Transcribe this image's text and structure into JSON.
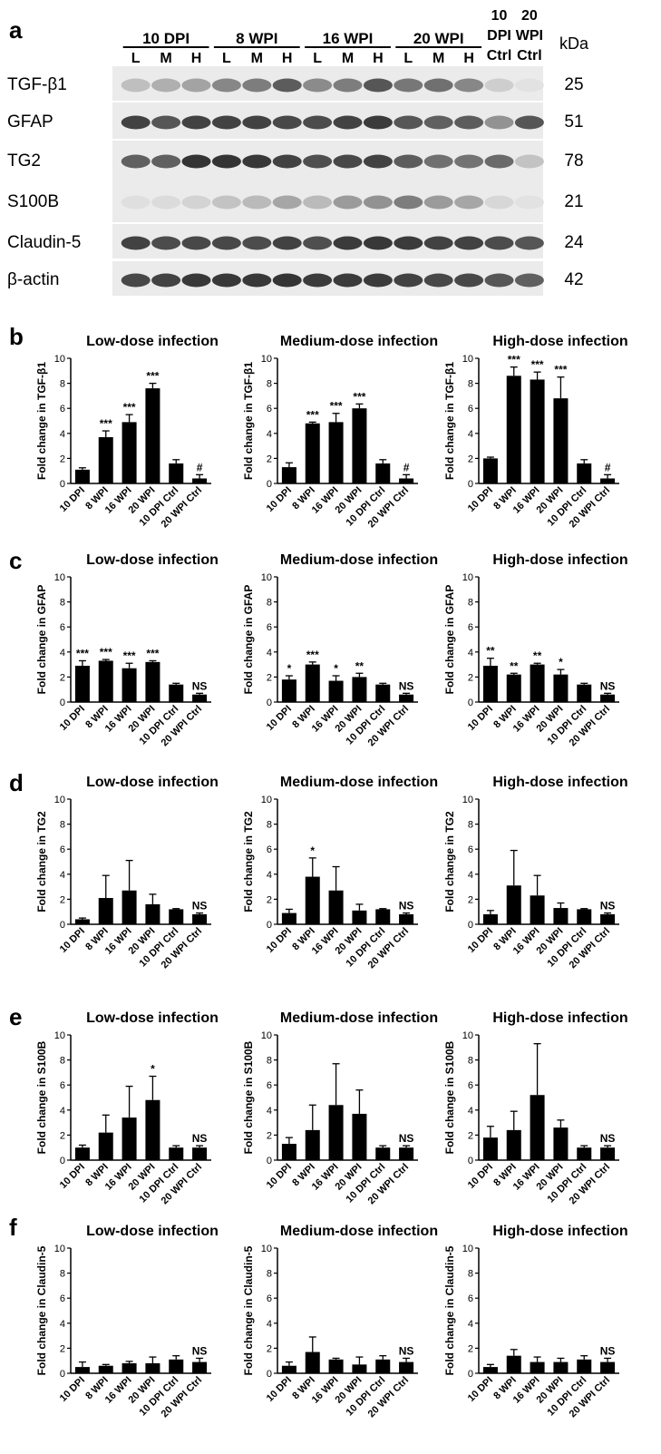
{
  "panel_a": {
    "label": "a",
    "groups": [
      "10 DPI",
      "8 WPI",
      "16 WPI",
      "20 WPI"
    ],
    "dose_labels": [
      "L",
      "M",
      "H"
    ],
    "ctrl_columns": [
      [
        "10",
        "DPI",
        "Ctrl"
      ],
      [
        "20",
        "WPI",
        "Ctrl"
      ]
    ],
    "kda_header": "kDa",
    "blots": [
      {
        "protein": "TGF-β1",
        "kda": "25",
        "intensity": [
          0.22,
          0.3,
          0.36,
          0.5,
          0.55,
          0.72,
          0.48,
          0.55,
          0.75,
          0.58,
          0.62,
          0.5,
          0.15,
          0.05
        ]
      },
      {
        "protein": "GFAP",
        "kda": "51",
        "intensity": [
          0.85,
          0.75,
          0.85,
          0.85,
          0.85,
          0.82,
          0.8,
          0.85,
          0.88,
          0.75,
          0.7,
          0.72,
          0.45,
          0.75
        ]
      },
      {
        "protein": "TG2",
        "kda": "78",
        "intensity": [
          0.7,
          0.7,
          0.92,
          0.92,
          0.9,
          0.85,
          0.78,
          0.82,
          0.85,
          0.72,
          0.62,
          0.6,
          0.65,
          0.2
        ]
      },
      {
        "protein": "S100B",
        "kda": "21",
        "intensity": [
          0.06,
          0.08,
          0.12,
          0.2,
          0.25,
          0.35,
          0.25,
          0.4,
          0.45,
          0.55,
          0.4,
          0.35,
          0.1,
          0.05
        ]
      },
      {
        "protein": "Claudin-5",
        "kda": "24",
        "intensity": [
          0.85,
          0.8,
          0.82,
          0.82,
          0.8,
          0.85,
          0.78,
          0.88,
          0.9,
          0.88,
          0.85,
          0.85,
          0.8,
          0.75
        ]
      },
      {
        "protein": "β-actin",
        "kda": "42",
        "intensity": [
          0.82,
          0.85,
          0.9,
          0.9,
          0.9,
          0.92,
          0.88,
          0.88,
          0.88,
          0.85,
          0.82,
          0.82,
          0.75,
          0.7
        ]
      }
    ]
  },
  "chart_data": [
    {
      "type": "bar",
      "panel": "b",
      "title": "Low-dose infection",
      "ylabel": "Fold change in TGF-β1",
      "categories": [
        "10 DPI",
        "8 WPI",
        "16 WPI",
        "20 WPI",
        "10 DPI Ctrl",
        "20 WPI Ctrl"
      ],
      "values": [
        1.1,
        3.7,
        4.9,
        7.6,
        1.6,
        0.4
      ],
      "errors": [
        0.15,
        0.5,
        0.6,
        0.4,
        0.3,
        0.3
      ],
      "annotations": [
        "",
        "***",
        "***",
        "***",
        "",
        "#"
      ],
      "ylim": [
        0,
        10
      ],
      "yticks": [
        0,
        2,
        4,
        6,
        8,
        10
      ]
    },
    {
      "type": "bar",
      "panel": "b",
      "title": "Medium-dose infection",
      "ylabel": "Fold change in TGF-β1",
      "categories": [
        "10 DPI",
        "8 WPI",
        "16 WPI",
        "20 WPI",
        "10 DPI Ctrl",
        "20 WPI Ctrl"
      ],
      "values": [
        1.3,
        4.8,
        4.9,
        6.0,
        1.6,
        0.4
      ],
      "errors": [
        0.35,
        0.1,
        0.7,
        0.35,
        0.3,
        0.3
      ],
      "annotations": [
        "",
        "***",
        "***",
        "***",
        "",
        "#"
      ],
      "ylim": [
        0,
        10
      ],
      "yticks": [
        0,
        2,
        4,
        6,
        8,
        10
      ]
    },
    {
      "type": "bar",
      "panel": "b",
      "title": "High-dose infection",
      "ylabel": "Fold change in TGF-β1",
      "categories": [
        "10 DPI",
        "8 WPI",
        "16 WPI",
        "20 WPI",
        "10 DPI Ctrl",
        "20 WPI Ctrl"
      ],
      "values": [
        2.0,
        8.6,
        8.3,
        6.8,
        1.6,
        0.4
      ],
      "errors": [
        0.1,
        0.7,
        0.6,
        1.7,
        0.3,
        0.3
      ],
      "annotations": [
        "",
        "***",
        "***",
        "***",
        "",
        "#"
      ],
      "ylim": [
        0,
        10
      ],
      "yticks": [
        0,
        2,
        4,
        6,
        8,
        10
      ]
    },
    {
      "type": "bar",
      "panel": "c",
      "title": "Low-dose infection",
      "ylabel": "Fold change in GFAP",
      "categories": [
        "10 DPI",
        "8 WPI",
        "16 WPI",
        "20 WPI",
        "10 DPI Ctrl",
        "20 WPI Ctrl"
      ],
      "values": [
        2.9,
        3.3,
        2.7,
        3.2,
        1.4,
        0.6
      ],
      "errors": [
        0.4,
        0.1,
        0.4,
        0.1,
        0.1,
        0.1
      ],
      "annotations": [
        "***",
        "***",
        "***",
        "***",
        "",
        "NS"
      ],
      "ylim": [
        0,
        10
      ],
      "yticks": [
        0,
        2,
        4,
        6,
        8,
        10
      ]
    },
    {
      "type": "bar",
      "panel": "c",
      "title": "Medium-dose infection",
      "ylabel": "Fold change in GFAP",
      "categories": [
        "10 DPI",
        "8 WPI",
        "16 WPI",
        "20 WPI",
        "10 DPI Ctrl",
        "20 WPI Ctrl"
      ],
      "values": [
        1.8,
        3.0,
        1.7,
        2.0,
        1.4,
        0.6
      ],
      "errors": [
        0.3,
        0.2,
        0.4,
        0.3,
        0.1,
        0.1
      ],
      "annotations": [
        "*",
        "***",
        "*",
        "**",
        "",
        "NS"
      ],
      "ylim": [
        0,
        10
      ],
      "yticks": [
        0,
        2,
        4,
        6,
        8,
        10
      ]
    },
    {
      "type": "bar",
      "panel": "c",
      "title": "High-dose infection",
      "ylabel": "Fold change in GFAP",
      "categories": [
        "10 DPI",
        "8 WPI",
        "16 WPI",
        "20 WPI",
        "10 DPI Ctrl",
        "20 WPI Ctrl"
      ],
      "values": [
        2.9,
        2.2,
        3.0,
        2.2,
        1.4,
        0.6
      ],
      "errors": [
        0.6,
        0.1,
        0.1,
        0.4,
        0.1,
        0.1
      ],
      "annotations": [
        "**",
        "**",
        "**",
        "*",
        "",
        "NS"
      ],
      "ylim": [
        0,
        10
      ],
      "yticks": [
        0,
        2,
        4,
        6,
        8,
        10
      ]
    },
    {
      "type": "bar",
      "panel": "d",
      "title": "Low-dose infection",
      "ylabel": "Fold change in TG2",
      "categories": [
        "10 DPI",
        "8 WPI",
        "16 WPI",
        "20 WPI",
        "10 DPI Ctrl",
        "20 WPI Ctrl"
      ],
      "values": [
        0.4,
        2.1,
        2.7,
        1.6,
        1.2,
        0.8
      ],
      "errors": [
        0.1,
        1.8,
        2.4,
        0.8,
        0.05,
        0.1
      ],
      "annotations": [
        "",
        "",
        "",
        "",
        "",
        "NS"
      ],
      "ylim": [
        0,
        10
      ],
      "yticks": [
        0,
        2,
        4,
        6,
        8,
        10
      ]
    },
    {
      "type": "bar",
      "panel": "d",
      "title": "Medium-dose infection",
      "ylabel": "Fold change in TG2",
      "categories": [
        "10 DPI",
        "8 WPI",
        "16 WPI",
        "20 WPI",
        "10 DPI Ctrl",
        "20 WPI Ctrl"
      ],
      "values": [
        0.9,
        3.8,
        2.7,
        1.1,
        1.2,
        0.8
      ],
      "errors": [
        0.3,
        1.5,
        1.9,
        0.5,
        0.05,
        0.1
      ],
      "annotations": [
        "",
        "*",
        "",
        "",
        "",
        "NS"
      ],
      "ylim": [
        0,
        10
      ],
      "yticks": [
        0,
        2,
        4,
        6,
        8,
        10
      ]
    },
    {
      "type": "bar",
      "panel": "d",
      "title": "High-dose infection",
      "ylabel": "Fold change in TG2",
      "categories": [
        "10 DPI",
        "8 WPI",
        "16 WPI",
        "20 WPI",
        "10 DPI Ctrl",
        "20 WPI Ctrl"
      ],
      "values": [
        0.8,
        3.1,
        2.3,
        1.3,
        1.2,
        0.8
      ],
      "errors": [
        0.3,
        2.8,
        1.6,
        0.4,
        0.05,
        0.1
      ],
      "annotations": [
        "",
        "",
        "",
        "",
        "",
        "NS"
      ],
      "ylim": [
        0,
        10
      ],
      "yticks": [
        0,
        2,
        4,
        6,
        8,
        10
      ]
    },
    {
      "type": "bar",
      "panel": "e",
      "title": "Low-dose infection",
      "ylabel": "Fold change in S100B",
      "categories": [
        "10 DPI",
        "8 WPI",
        "16 WPI",
        "20 WPI",
        "10 DPI Ctrl",
        "20 WPI Ctrl"
      ],
      "values": [
        1.0,
        2.2,
        3.4,
        4.8,
        1.0,
        1.0
      ],
      "errors": [
        0.2,
        1.4,
        2.5,
        1.9,
        0.15,
        0.15
      ],
      "annotations": [
        "",
        "",
        "",
        "*",
        "",
        "NS"
      ],
      "ylim": [
        0,
        10
      ],
      "yticks": [
        0,
        2,
        4,
        6,
        8,
        10
      ]
    },
    {
      "type": "bar",
      "panel": "e",
      "title": "Medium-dose infection",
      "ylabel": "Fold change in S100B",
      "categories": [
        "10 DPI",
        "8 WPI",
        "16 WPI",
        "20 WPI",
        "10 DPI Ctrl",
        "20 WPI Ctrl"
      ],
      "values": [
        1.3,
        2.4,
        4.4,
        3.7,
        1.0,
        1.0
      ],
      "errors": [
        0.5,
        2.0,
        3.3,
        1.9,
        0.15,
        0.15
      ],
      "annotations": [
        "",
        "",
        "",
        "",
        "",
        "NS"
      ],
      "ylim": [
        0,
        10
      ],
      "yticks": [
        0,
        2,
        4,
        6,
        8,
        10
      ]
    },
    {
      "type": "bar",
      "panel": "e",
      "title": "High-dose infection",
      "ylabel": "Fold change in S100B",
      "categories": [
        "10 DPI",
        "8 WPI",
        "16 WPI",
        "20 WPI",
        "10 DPI Ctrl",
        "20 WPI Ctrl"
      ],
      "values": [
        1.8,
        2.4,
        5.2,
        2.6,
        1.0,
        1.0
      ],
      "errors": [
        0.9,
        1.5,
        4.1,
        0.6,
        0.15,
        0.15
      ],
      "annotations": [
        "",
        "",
        "",
        "",
        "",
        "NS"
      ],
      "ylim": [
        0,
        10
      ],
      "yticks": [
        0,
        2,
        4,
        6,
        8,
        10
      ]
    },
    {
      "type": "bar",
      "panel": "f",
      "title": "Low-dose infection",
      "ylabel": "Fold change in Claudin-5",
      "categories": [
        "10 DPI",
        "8 WPI",
        "16 WPI",
        "20 WPI",
        "10 DPI Ctrl",
        "20 WPI Ctrl"
      ],
      "values": [
        0.5,
        0.6,
        0.8,
        0.8,
        1.1,
        0.9
      ],
      "errors": [
        0.4,
        0.1,
        0.15,
        0.5,
        0.3,
        0.3
      ],
      "annotations": [
        "",
        "",
        "",
        "",
        "",
        "NS"
      ],
      "ylim": [
        0,
        10
      ],
      "yticks": [
        0,
        2,
        4,
        6,
        8,
        10
      ]
    },
    {
      "type": "bar",
      "panel": "f",
      "title": "Medium-dose infection",
      "ylabel": "Fold change in Claudin-5",
      "categories": [
        "10 DPI",
        "8 WPI",
        "16 WPI",
        "20 WPI",
        "10 DPI Ctrl",
        "20 WPI Ctrl"
      ],
      "values": [
        0.6,
        1.7,
        1.1,
        0.7,
        1.1,
        0.9
      ],
      "errors": [
        0.3,
        1.2,
        0.1,
        0.6,
        0.3,
        0.3
      ],
      "annotations": [
        "",
        "",
        "",
        "",
        "",
        "NS"
      ],
      "ylim": [
        0,
        10
      ],
      "yticks": [
        0,
        2,
        4,
        6,
        8,
        10
      ]
    },
    {
      "type": "bar",
      "panel": "f",
      "title": "High-dose infection",
      "ylabel": "Fold change in Claudin-5",
      "categories": [
        "10 DPI",
        "8 WPI",
        "16 WPI",
        "20 WPI",
        "10 DPI Ctrl",
        "20 WPI Ctrl"
      ],
      "values": [
        0.5,
        1.4,
        0.9,
        0.9,
        1.1,
        0.9
      ],
      "errors": [
        0.2,
        0.5,
        0.4,
        0.3,
        0.3,
        0.3
      ],
      "annotations": [
        "",
        "",
        "",
        "",
        "",
        "NS"
      ],
      "ylim": [
        0,
        10
      ],
      "yticks": [
        0,
        2,
        4,
        6,
        8,
        10
      ]
    }
  ]
}
